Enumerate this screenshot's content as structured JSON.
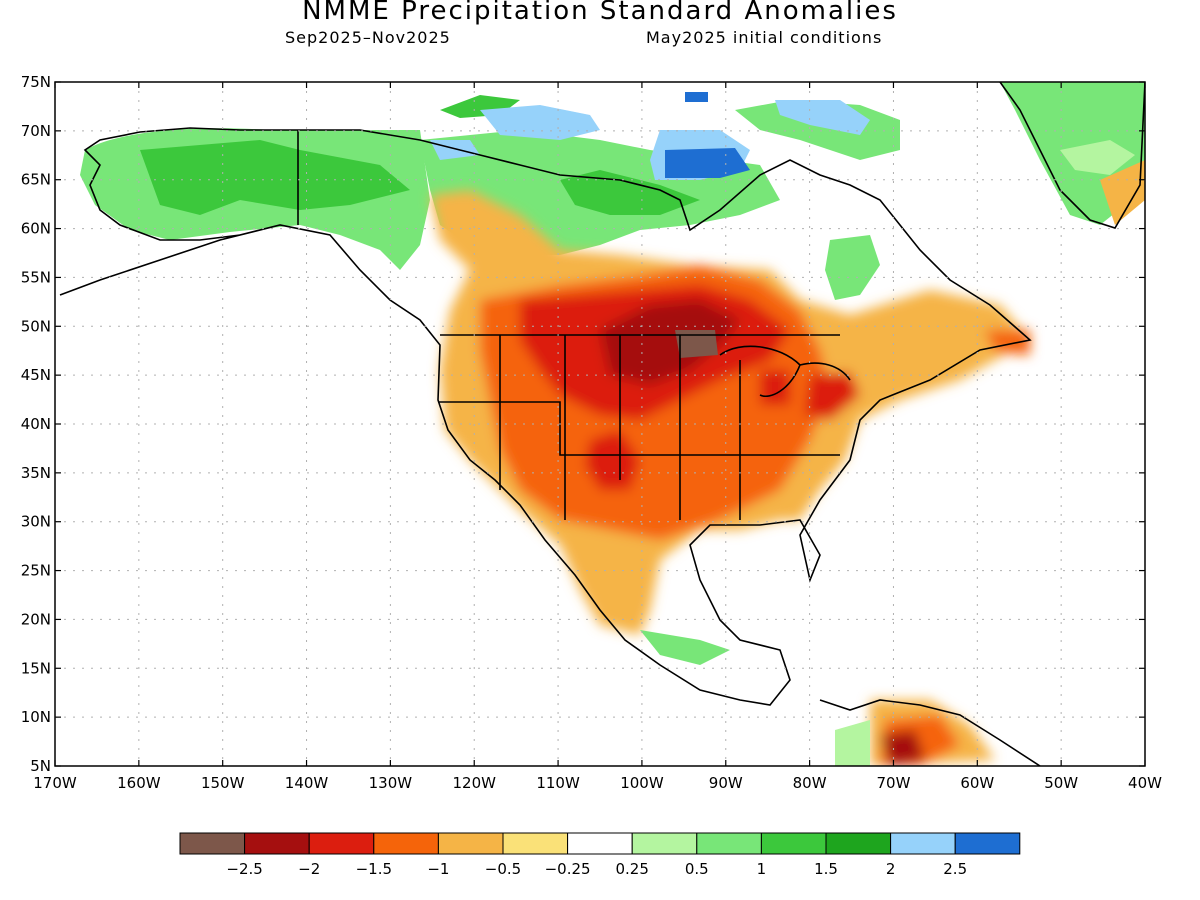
{
  "title": "NMME Precipitation Standard Anomalies",
  "subtitle_left": "Sep2025–Nov2025",
  "subtitle_right": "May2025 initial conditions",
  "lat_labels": [
    "75N",
    "70N",
    "65N",
    "60N",
    "55N",
    "50N",
    "45N",
    "40N",
    "35N",
    "30N",
    "25N",
    "20N",
    "15N",
    "10N",
    "5N"
  ],
  "lon_labels": [
    "170W",
    "160W",
    "150W",
    "140W",
    "130W",
    "120W",
    "110W",
    "100W",
    "90W",
    "80W",
    "70W",
    "60W",
    "50W",
    "40W"
  ],
  "legend": {
    "colors": [
      "#7d574a",
      "#a50f0f",
      "#dc1e0f",
      "#f5640a",
      "#f5b446",
      "#fae178",
      "#ffffff",
      "#b4f5a0",
      "#78e678",
      "#3cc83c",
      "#1ea51e",
      "#96d2fa",
      "#1e6ed2"
    ],
    "labels": [
      "−2.5",
      "−2",
      "−1.5",
      "−1",
      "−0.5",
      "−0.25",
      "0.25",
      "0.5",
      "1",
      "1.5",
      "2",
      "2.5"
    ]
  },
  "colors": {
    "land_outline": "#000000",
    "grid": "#b0b0b0"
  }
}
